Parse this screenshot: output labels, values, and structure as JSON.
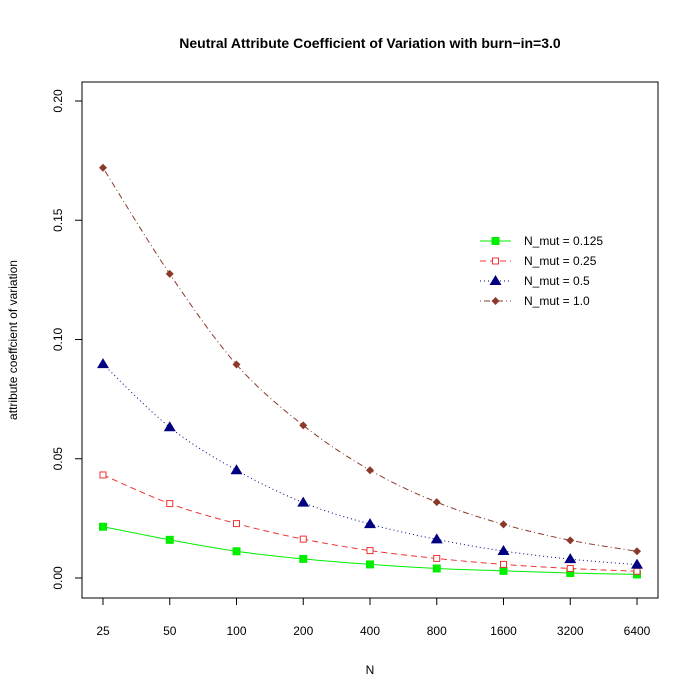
{
  "chart_data": {
    "type": "line",
    "title": "Neutral Attribute Coefficient of Variation with burn−in=3.0",
    "xlabel": "N",
    "ylabel": "attribute coeffcient of variation",
    "x_scale": "log2",
    "categories": [
      "25",
      "50",
      "100",
      "200",
      "400",
      "800",
      "1600",
      "3200",
      "6400"
    ],
    "ylim": [
      0,
      0.2
    ],
    "yticks": [
      "0.00",
      "0.05",
      "0.10",
      "0.15",
      "0.20"
    ],
    "ytick_values": [
      0,
      0.05,
      0.1,
      0.15,
      0.2
    ],
    "grid": false,
    "legend_position": "right",
    "series": [
      {
        "name": "N_mut = 0.125",
        "color": "#00ee00",
        "line_style": "solid",
        "marker": "filled-square",
        "values": [
          0.0215,
          0.016,
          0.0112,
          0.008,
          0.0057,
          0.004,
          0.003,
          0.0021,
          0.0015
        ]
      },
      {
        "name": "N_mut = 0.25",
        "color": "#ee3333",
        "line_style": "dashed",
        "marker": "open-square",
        "values": [
          0.0432,
          0.0312,
          0.0228,
          0.0163,
          0.0115,
          0.0082,
          0.0057,
          0.004,
          0.0028
        ]
      },
      {
        "name": "N_mut = 0.5",
        "color": "#000080",
        "line_style": "dotted",
        "marker": "filled-triangle",
        "values": [
          0.0897,
          0.0632,
          0.0452,
          0.0316,
          0.0226,
          0.0162,
          0.0113,
          0.0079,
          0.0056
        ]
      },
      {
        "name": "N_mut = 1.0",
        "color": "#8b3a2a",
        "line_style": "dotdash",
        "marker": "filled-diamond",
        "values": [
          0.172,
          0.1275,
          0.0895,
          0.064,
          0.0452,
          0.0318,
          0.0225,
          0.0158,
          0.0112
        ]
      }
    ]
  }
}
